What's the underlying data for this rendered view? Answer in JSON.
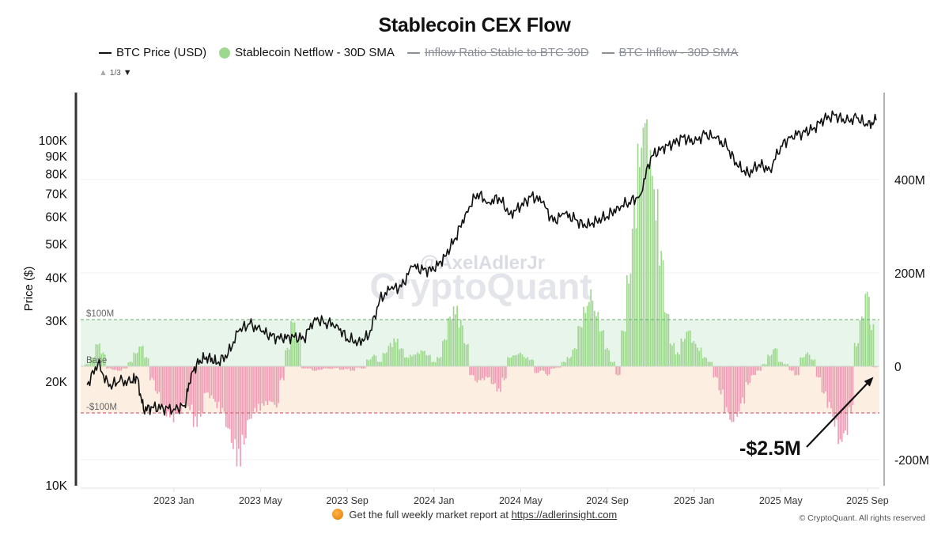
{
  "title": "Stablecoin CEX Flow",
  "legend": [
    {
      "label": "BTC Price (USD)",
      "marker": "line",
      "active": true
    },
    {
      "label": "Stablecoin Netflow - 30D SMA",
      "marker": "dot",
      "active": true
    },
    {
      "label": "Inflow Ratio Stable to BTC 30D",
      "marker": "line",
      "active": false
    },
    {
      "label": "BTC Inflow - 30D SMA",
      "marker": "line",
      "active": false
    }
  ],
  "legend_pager": {
    "text": "1/3",
    "up_icon": "▲",
    "down_icon": "▼"
  },
  "watermark": {
    "handle": "@AxelAdlerJr",
    "brand": "CryptoQuant"
  },
  "annotation": {
    "text": "-$2.5M"
  },
  "footer": {
    "text": "Get the full weekly market report at",
    "link": "https://adlerinsight.com",
    "copyright": "© CryptoQuant. All rights reserved"
  },
  "colors": {
    "price_line": "#111111",
    "netflow_positive": "#9ed88e",
    "netflow_negative": "#ef9db5",
    "band_positive": "#e8f5ea",
    "band_negative": "#fdeee2",
    "threshold_positive": "#6aaa6a",
    "threshold_negative": "#d46a7c"
  },
  "chart_data": {
    "type": "bar+line",
    "title": "Stablecoin CEX Flow",
    "ylabel_left": "Price ($)",
    "ylabel_right": "",
    "left_axis": {
      "scale": "log",
      "range": [
        10000,
        150000
      ],
      "ticks": [
        10000,
        20000,
        30000,
        40000,
        50000,
        60000,
        70000,
        80000,
        90000,
        100000
      ],
      "tick_labels": [
        "10K",
        "20K",
        "30K",
        "40K",
        "50K",
        "60K",
        "70K",
        "80K",
        "90K",
        "100K"
      ]
    },
    "right_axis": {
      "scale": "linear",
      "range": [
        -250,
        600
      ],
      "unit": "M USD",
      "ticks": [
        -200,
        0,
        200,
        400
      ],
      "tick_labels": [
        "-200M",
        "0",
        "200M",
        "400M"
      ]
    },
    "x_axis": {
      "range": [
        "2022-09",
        "2025-09"
      ],
      "tick_labels": [
        "2023 Jan",
        "2023 May",
        "2023 Sep",
        "2024 Jan",
        "2024 May",
        "2024 Sep",
        "2025 Jan",
        "2025 May",
        "2025 Sep"
      ],
      "tick_months": [
        4,
        8,
        12,
        16,
        20,
        24,
        28,
        32,
        36
      ]
    },
    "thresholds": [
      {
        "label": "$100M",
        "value": 100
      },
      {
        "label": "Base",
        "value": 0
      },
      {
        "label": "-$100M",
        "value": -100
      }
    ],
    "grid": true,
    "legend_position": "top-left",
    "series": [
      {
        "name": "BTC Price (USD)",
        "type": "line",
        "axis": "left",
        "x_month": [
          0,
          0.5,
          1,
          1.5,
          2,
          2.3,
          2.6,
          3,
          3.5,
          4,
          4.5,
          4.8,
          5.2,
          5.6,
          6,
          6.5,
          7,
          7.5,
          8,
          8.5,
          9,
          9.5,
          10,
          10.5,
          11,
          11.5,
          12,
          12.5,
          13,
          13.5,
          14,
          14.5,
          15,
          15.5,
          16,
          16.5,
          17,
          17.5,
          18,
          18.5,
          19,
          19.5,
          20,
          20.5,
          21,
          21.5,
          22,
          22.5,
          23,
          23.5,
          24,
          24.5,
          25,
          25.5,
          26,
          26.5,
          27,
          27.5,
          28,
          28.5,
          29,
          29.5,
          30,
          30.5,
          31,
          31.5,
          32,
          32.5,
          33,
          33.5,
          34,
          34.5,
          35,
          35.5,
          36,
          36.4
        ],
        "values": [
          19500,
          22500,
          19300,
          20000,
          19800,
          20500,
          16500,
          16800,
          16700,
          16600,
          17000,
          21000,
          23000,
          23500,
          22500,
          24000,
          28000,
          29300,
          28000,
          27000,
          26500,
          27000,
          26500,
          30500,
          29500,
          29200,
          26500,
          26000,
          27000,
          34500,
          37000,
          37500,
          43000,
          42000,
          42000,
          46000,
          52000,
          62000,
          70000,
          66000,
          68000,
          61000,
          64000,
          69000,
          66000,
          58000,
          61000,
          59000,
          56000,
          58500,
          60000,
          64000,
          66000,
          69000,
          89000,
          95000,
          97000,
          102000,
          98000,
          104000,
          101000,
          96000,
          84000,
          80000,
          85000,
          82000,
          96000,
          103000,
          105000,
          108000,
          115000,
          118000,
          113000,
          116000,
          110000,
          114000
        ]
      },
      {
        "name": "Stablecoin Netflow - 30D SMA",
        "type": "bar",
        "axis": "right",
        "unit": "M USD",
        "x_month": [
          0,
          0.25,
          0.5,
          0.75,
          1,
          1.25,
          1.5,
          1.75,
          2,
          2.25,
          2.5,
          2.75,
          3,
          3.25,
          3.5,
          3.75,
          4,
          4.25,
          4.5,
          4.75,
          5,
          5.25,
          5.5,
          5.75,
          6,
          6.25,
          6.5,
          6.75,
          7,
          7.25,
          7.5,
          7.75,
          8,
          8.25,
          8.5,
          8.75,
          9,
          9.25,
          9.5,
          9.75,
          10,
          10.25,
          10.5,
          10.75,
          11,
          11.25,
          11.5,
          11.75,
          12,
          12.25,
          12.5,
          12.75,
          13,
          13.25,
          13.5,
          13.75,
          14,
          14.25,
          14.5,
          14.75,
          15,
          15.25,
          15.5,
          15.75,
          16,
          16.25,
          16.5,
          16.75,
          17,
          17.25,
          17.5,
          17.75,
          18,
          18.25,
          18.5,
          18.75,
          19,
          19.25,
          19.5,
          19.75,
          20,
          20.25,
          20.5,
          20.75,
          21,
          21.25,
          21.5,
          21.75,
          22,
          22.25,
          22.5,
          22.75,
          23,
          23.25,
          23.5,
          23.75,
          24,
          24.25,
          24.5,
          24.75,
          25,
          25.25,
          25.5,
          25.75,
          26,
          26.25,
          26.5,
          26.75,
          27,
          27.25,
          27.5,
          27.75,
          28,
          28.25,
          28.5,
          28.75,
          29,
          29.25,
          29.5,
          29.75,
          30,
          30.25,
          30.5,
          30.75,
          31,
          31.25,
          31.5,
          31.75,
          32,
          32.25,
          32.5,
          32.75,
          33,
          33.25,
          33.5,
          33.75,
          34,
          34.25,
          34.5,
          34.75,
          35,
          35.25,
          35.5,
          35.75,
          36,
          36.2,
          36.35
        ],
        "values": [
          5,
          20,
          50,
          30,
          -5,
          -8,
          -10,
          -5,
          10,
          30,
          45,
          20,
          -30,
          -60,
          -90,
          -110,
          -120,
          -100,
          -85,
          -95,
          -130,
          -110,
          -60,
          -70,
          -90,
          -100,
          -140,
          -180,
          -215,
          -170,
          -120,
          -100,
          -95,
          -85,
          -80,
          -90,
          -30,
          40,
          100,
          60,
          -5,
          -5,
          -10,
          -8,
          -5,
          -6,
          -4,
          -8,
          -6,
          -10,
          -3,
          -5,
          15,
          25,
          10,
          30,
          50,
          60,
          40,
          20,
          25,
          30,
          35,
          25,
          10,
          20,
          60,
          110,
          130,
          100,
          50,
          -20,
          -35,
          -30,
          -25,
          -40,
          -55,
          -30,
          20,
          25,
          30,
          20,
          15,
          -15,
          -10,
          -20,
          -5,
          -3,
          10,
          20,
          40,
          90,
          130,
          165,
          120,
          80,
          40,
          10,
          -20,
          80,
          200,
          350,
          480,
          550,
          470,
          380,
          250,
          120,
          50,
          30,
          60,
          80,
          55,
          40,
          20,
          10,
          -25,
          -60,
          -100,
          -125,
          -110,
          -80,
          -40,
          -20,
          -10,
          5,
          25,
          40,
          10,
          5,
          -10,
          -20,
          20,
          30,
          15,
          -25,
          -60,
          -90,
          -130,
          -170,
          -150,
          -100,
          50,
          110,
          165,
          90,
          -2.5
        ]
      }
    ],
    "annotations": [
      {
        "text": "-$2.5M",
        "target_value": -2.5,
        "target_x_month": 36.35,
        "type": "arrow"
      }
    ]
  }
}
